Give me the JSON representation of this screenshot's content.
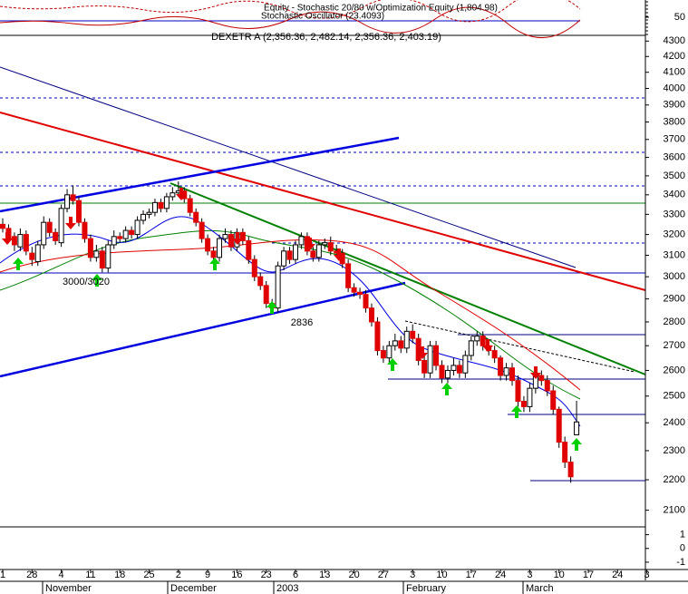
{
  "chart_data": [
    {
      "type": "line",
      "title": "Equity - Stochastic 20/80 w/Optimization Equity (1,804.98)",
      "subtitle": "Stochastic Oscillator (23.4093)",
      "ylim": [
        0,
        100
      ],
      "yticks": [
        50
      ]
    },
    {
      "type": "candlestick",
      "title": "DEXETR A (2,356.36, 2,482.14, 2,356.36, 2,403.19)",
      "log_scale": true,
      "categories": [
        "1",
        null,
        null,
        null,
        null,
        "28",
        null,
        null,
        null,
        null,
        "4",
        null,
        null,
        null,
        null,
        "11",
        null,
        null,
        null,
        null,
        "18",
        null,
        null,
        null,
        null,
        "25",
        null,
        null,
        null,
        null,
        "2",
        null,
        null,
        null,
        null,
        "9",
        null,
        null,
        null,
        null,
        "16",
        null,
        null,
        null,
        null,
        "23",
        null,
        null,
        null,
        null,
        "6",
        null,
        null,
        null,
        null,
        "13",
        null,
        null,
        null,
        null,
        "20",
        null,
        null,
        null,
        null,
        "27",
        null,
        null,
        null,
        null,
        "3",
        null,
        null,
        null,
        null,
        "10",
        null,
        null,
        null,
        null,
        "17",
        null,
        null,
        null,
        null,
        "24",
        null,
        null,
        null,
        null,
        "3",
        null,
        null,
        null,
        null,
        "10",
        null,
        null,
        null,
        null,
        "17",
        null,
        null,
        null,
        null,
        "24",
        null,
        null,
        null,
        null,
        "3"
      ],
      "x_groups": [
        "November",
        "December",
        "2003",
        "February",
        "March"
      ],
      "open": [
        3250,
        3230,
        3190,
        3140,
        3200,
        3110,
        3070,
        3150,
        3260,
        3210,
        3160,
        3330,
        3400,
        3370,
        3260,
        3180,
        3090,
        3120,
        3040,
        3150,
        3190,
        3180,
        3220,
        3200,
        3270,
        3300,
        3310,
        3360,
        3330,
        3390,
        3410,
        3420,
        3380,
        3310,
        3260,
        3180,
        3120,
        3090,
        3180,
        3200,
        3140,
        3210,
        3170,
        3080,
        3000,
        2960,
        2880,
        2860,
        3050,
        3120,
        3080,
        3150,
        3190,
        3120,
        3090,
        3150,
        3160,
        3120,
        3110,
        3060,
        2950,
        2930,
        2920,
        2860,
        2800,
        2680,
        2650,
        2700,
        2720,
        2690,
        2760,
        2730,
        2640,
        2590,
        2700,
        2620,
        2570,
        2600,
        2620,
        2590,
        2660,
        2720,
        2740,
        2700,
        2680,
        2650,
        2580,
        2610,
        2560,
        2480,
        2460,
        2530,
        2580,
        2560,
        2520,
        2450,
        2330,
        2260,
        2356.36,
        null,
        null,
        null,
        null,
        null,
        null,
        null,
        null,
        null,
        null,
        null,
        null
      ],
      "high": [
        3280,
        3250,
        3210,
        3230,
        3220,
        3140,
        3170,
        3290,
        3280,
        3230,
        3350,
        3430,
        3450,
        3390,
        3280,
        3200,
        3150,
        3140,
        3170,
        3220,
        3210,
        3240,
        3240,
        3290,
        3320,
        3330,
        3380,
        3380,
        3410,
        3440,
        3470,
        3440,
        3400,
        3330,
        3280,
        3200,
        3140,
        3200,
        3230,
        3220,
        3230,
        3230,
        3190,
        3100,
        3020,
        2980,
        2900,
        3070,
        3140,
        3140,
        3170,
        3210,
        3210,
        3140,
        3170,
        3180,
        3190,
        3150,
        3130,
        3080,
        2970,
        2950,
        2940,
        2880,
        2820,
        2700,
        2720,
        2750,
        2740,
        2780,
        2790,
        2750,
        2660,
        2720,
        2720,
        2640,
        2620,
        2650,
        2640,
        2680,
        2740,
        2760,
        2760,
        2720,
        2700,
        2660,
        2630,
        2630,
        2580,
        2500,
        2550,
        2600,
        2600,
        2580,
        2540,
        2460,
        2350,
        2280,
        2482.14,
        null,
        null,
        null,
        null,
        null,
        null,
        null,
        null,
        null,
        null,
        null,
        null
      ],
      "low": [
        3210,
        3160,
        3120,
        3120,
        3100,
        3050,
        3050,
        3130,
        3190,
        3150,
        3140,
        3310,
        3350,
        3240,
        3160,
        3070,
        3070,
        3020,
        3020,
        3130,
        3160,
        3160,
        3180,
        3180,
        3250,
        3280,
        3290,
        3310,
        3310,
        3370,
        3390,
        3360,
        3290,
        3240,
        3160,
        3100,
        3070,
        3070,
        3160,
        3120,
        3120,
        3150,
        3060,
        2980,
        2940,
        2860,
        2836,
        2840,
        3030,
        3060,
        3060,
        3130,
        3100,
        3070,
        3070,
        3130,
        3100,
        3090,
        3040,
        2930,
        2910,
        2900,
        2840,
        2780,
        2660,
        2630,
        2630,
        2680,
        2670,
        2670,
        2710,
        2620,
        2570,
        2570,
        2600,
        2550,
        2550,
        2580,
        2570,
        2570,
        2640,
        2700,
        2680,
        2660,
        2630,
        2560,
        2560,
        2540,
        2460,
        2440,
        2440,
        2510,
        2540,
        2500,
        2430,
        2310,
        2240,
        2190,
        2356.36,
        null,
        null,
        null,
        null,
        null,
        null,
        null,
        null,
        null,
        null,
        null,
        null
      ],
      "close": [
        3230,
        3180,
        3150,
        3200,
        3120,
        3080,
        3150,
        3260,
        3210,
        3170,
        3330,
        3400,
        3370,
        3260,
        3180,
        3090,
        3120,
        3040,
        3150,
        3190,
        3180,
        3220,
        3200,
        3270,
        3300,
        3310,
        3360,
        3330,
        3390,
        3410,
        3420,
        3380,
        3310,
        3260,
        3180,
        3120,
        3090,
        3180,
        3200,
        3140,
        3210,
        3170,
        3080,
        3000,
        2960,
        2880,
        2860,
        3050,
        3120,
        3080,
        3150,
        3190,
        3120,
        3090,
        3150,
        3160,
        3120,
        3110,
        3060,
        2950,
        2930,
        2920,
        2860,
        2800,
        2680,
        2650,
        2700,
        2720,
        2690,
        2760,
        2730,
        2640,
        2590,
        2700,
        2620,
        2570,
        2600,
        2620,
        2590,
        2660,
        2720,
        2740,
        2700,
        2680,
        2650,
        2580,
        2610,
        2560,
        2480,
        2460,
        2530,
        2580,
        2560,
        2520,
        2450,
        2330,
        2260,
        2210,
        2403.19,
        null,
        null,
        null,
        null,
        null,
        null,
        null,
        null,
        null,
        null,
        null,
        null
      ],
      "up_color": "#ffffff",
      "down_color": "#e00000",
      "ylim": [
        2050,
        4380
      ],
      "yticks": [
        2100,
        2200,
        2300,
        2400,
        2500,
        2600,
        2700,
        2800,
        2900,
        3000,
        3100,
        3200,
        3300,
        3400,
        3500,
        3600,
        3700,
        3800,
        3900,
        4000,
        4100,
        4200,
        4300
      ],
      "annotations": [
        "3000/3020",
        "2836"
      ]
    },
    {
      "type": "line",
      "ylim": [
        -1.4,
        1.5
      ],
      "yticks": [
        1,
        0,
        -1
      ]
    }
  ]
}
